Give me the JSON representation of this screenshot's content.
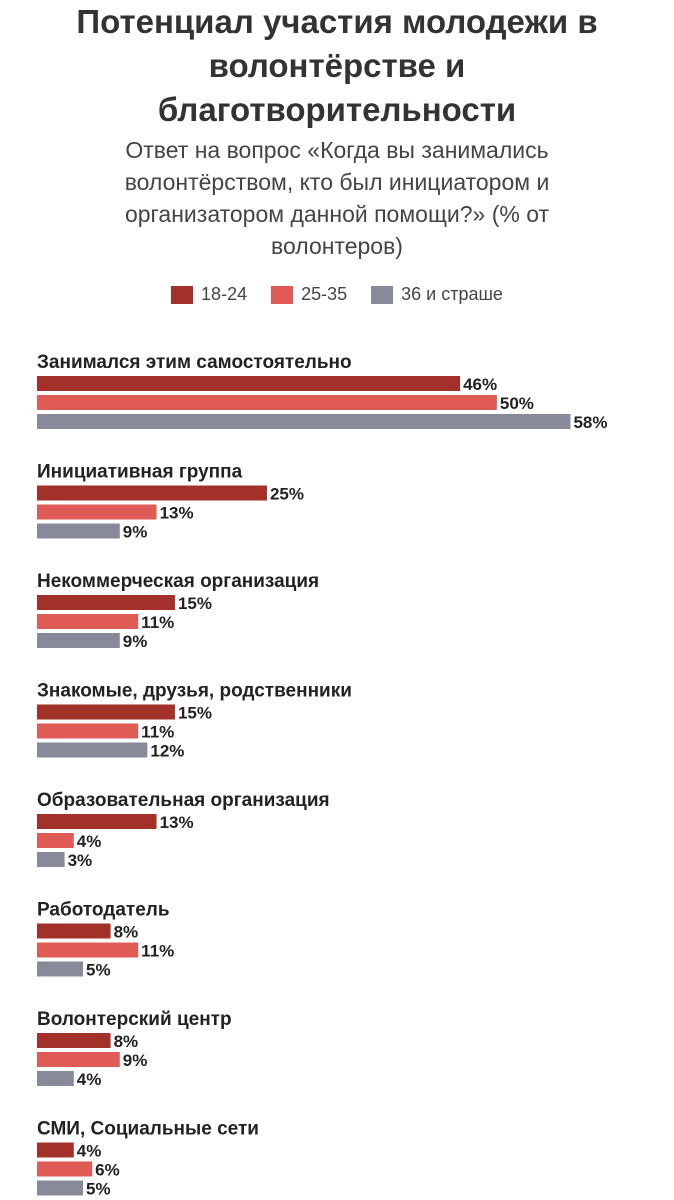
{
  "title_lines": [
    "Потенциал участия молодежи в",
    "волонтёрстве и",
    "благотворительности"
  ],
  "subtitle_lines": [
    "Ответ на вопрос «Когда вы занимались",
    "волонтёрством, кто был инициатором и",
    "организатором данной помощи?» (% от",
    "волонтеров)"
  ],
  "colors": {
    "s1824": "#a4302a",
    "s2535": "#e05b55",
    "s36": "#878b99"
  },
  "chart_data": {
    "type": "bar",
    "orientation": "horizontal",
    "title": "Потенциал участия молодежи в волонтёрстве и благотворительности",
    "subtitle": "Ответ на вопрос «Когда вы занимались волонтёрством, кто был инициатором и организатором данной помощи?» (% от волонтеров)",
    "xlim": [
      0,
      60
    ],
    "grid": false,
    "legend_placement": "top-center",
    "value_suffix": "%",
    "categories": [
      "Занимался этим самостоятельно",
      "Инициативная группа",
      "Некоммерческая организация",
      "Знакомые, друзья, родственники",
      "Образовательная организация",
      "Работодатель",
      "Волонтерский центр",
      "СМИ, Социальные сети"
    ],
    "series": [
      {
        "name": "18-24",
        "color": "#a4302a",
        "values": [
          46,
          25,
          15,
          15,
          13,
          8,
          8,
          4
        ]
      },
      {
        "name": "25-35",
        "color": "#e05b55",
        "values": [
          50,
          13,
          11,
          11,
          4,
          11,
          9,
          6
        ]
      },
      {
        "name": "36 и страше",
        "color": "#878b99",
        "values": [
          58,
          9,
          9,
          12,
          3,
          5,
          4,
          5
        ]
      }
    ]
  }
}
